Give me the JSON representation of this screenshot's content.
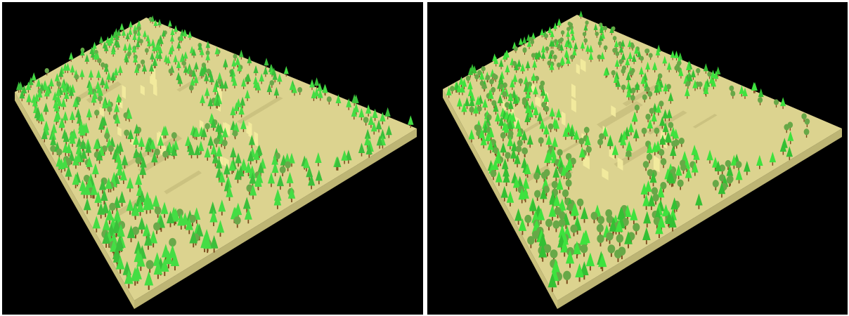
{
  "views": [
    {
      "id": "left",
      "colors": {
        "background": "#000000",
        "terrain_top": "#dcd38f",
        "terrain_side": "#c9c07c",
        "terrain_shadow": "#bdb574",
        "terrace_highlight": "#f4ec9e",
        "conifer_light": "#44dd44",
        "conifer_dark": "#3bbf3b",
        "broadleaf": "#6aa84a",
        "trunk": "#7a4a1c"
      },
      "trees": {
        "conifer_share": 0.85,
        "broadleaf_share": 0.15
      }
    },
    {
      "id": "right",
      "colors": {
        "background": "#000000",
        "terrain_top": "#dcd38f",
        "terrain_side": "#c9c07c",
        "terrain_shadow": "#bdb574",
        "terrace_highlight": "#f4ec9e",
        "conifer_light": "#3ee23e",
        "conifer_dark": "#34c034",
        "broadleaf": "#67a847",
        "trunk": "#7a4a1c"
      },
      "trees": {
        "conifer_share": 0.6,
        "broadleaf_share": 0.4
      }
    }
  ]
}
